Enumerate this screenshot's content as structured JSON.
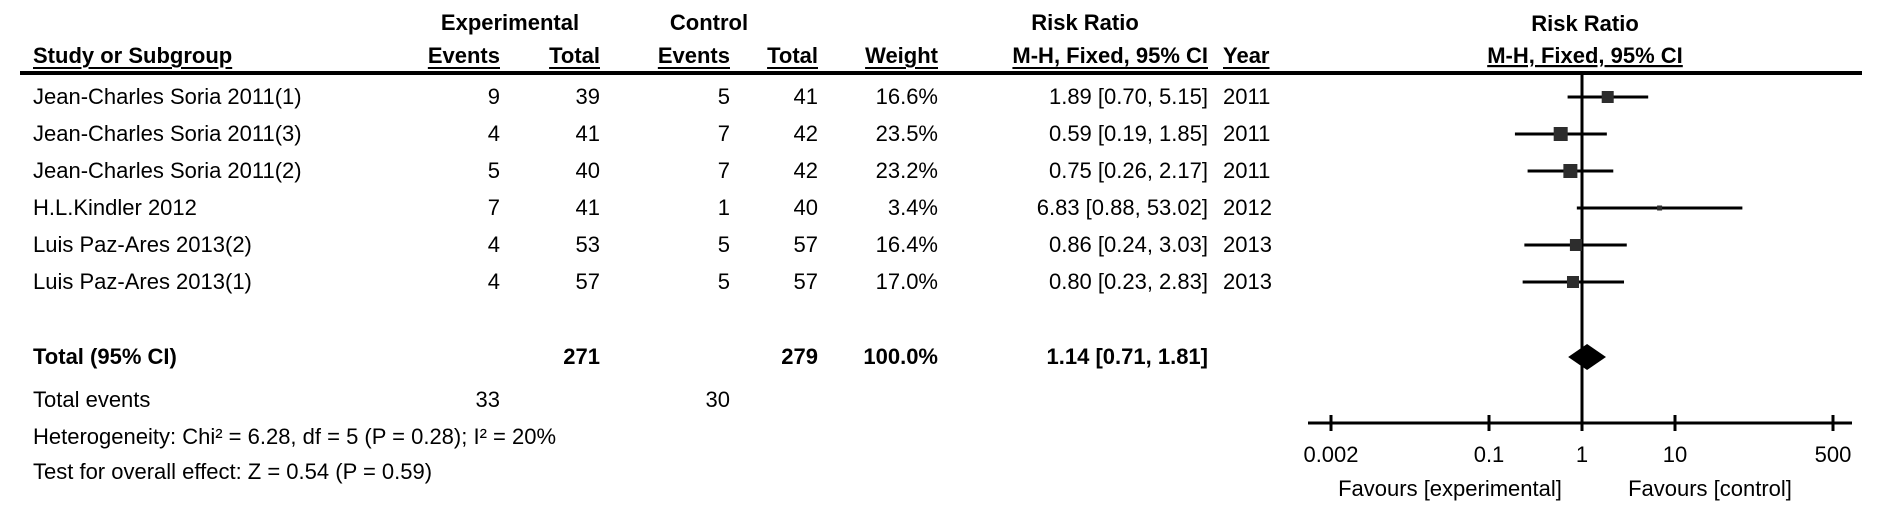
{
  "table": {
    "group_headers": {
      "experimental": "Experimental",
      "control": "Control",
      "risk_ratio": "Risk Ratio"
    },
    "col_headers": {
      "study": "Study or Subgroup",
      "exp_events": "Events",
      "exp_total": "Total",
      "ctrl_events": "Events",
      "ctrl_total": "Total",
      "weight": "Weight",
      "mh_ci": "M-H, Fixed, 95% CI",
      "year": "Year"
    },
    "rows": [
      {
        "study": "Jean-Charles Soria 2011(1)",
        "exp_events": "9",
        "exp_total": "39",
        "ctrl_events": "5",
        "ctrl_total": "41",
        "weight": "16.6%",
        "ci": "1.89 [0.70, 5.15]",
        "year": "2011"
      },
      {
        "study": "Jean-Charles Soria 2011(3)",
        "exp_events": "4",
        "exp_total": "41",
        "ctrl_events": "7",
        "ctrl_total": "42",
        "weight": "23.5%",
        "ci": "0.59 [0.19, 1.85]",
        "year": "2011"
      },
      {
        "study": "Jean-Charles Soria 2011(2)",
        "exp_events": "5",
        "exp_total": "40",
        "ctrl_events": "7",
        "ctrl_total": "42",
        "weight": "23.2%",
        "ci": "0.75 [0.26, 2.17]",
        "year": "2011"
      },
      {
        "study": "H.L.Kindler 2012",
        "exp_events": "7",
        "exp_total": "41",
        "ctrl_events": "1",
        "ctrl_total": "40",
        "weight": "3.4%",
        "ci": "6.83 [0.88, 53.02]",
        "year": "2012"
      },
      {
        "study": "Luis Paz-Ares 2013(2)",
        "exp_events": "4",
        "exp_total": "53",
        "ctrl_events": "5",
        "ctrl_total": "57",
        "weight": "16.4%",
        "ci": "0.86 [0.24, 3.03]",
        "year": "2013"
      },
      {
        "study": "Luis Paz-Ares 2013(1)",
        "exp_events": "4",
        "exp_total": "57",
        "ctrl_events": "5",
        "ctrl_total": "57",
        "weight": "17.0%",
        "ci": "0.80 [0.23, 2.83]",
        "year": "2013"
      }
    ],
    "total_row": {
      "label": "Total (95% CI)",
      "exp_total": "271",
      "ctrl_total": "279",
      "weight": "100.0%",
      "ci": "1.14 [0.71, 1.81]"
    },
    "total_events_row": {
      "label": "Total events",
      "exp_events": "33",
      "ctrl_events": "30"
    },
    "heterogeneity": "Heterogeneity: Chi² = 6.28, df = 5 (P = 0.28); I² = 20%",
    "overall_effect": "Test for overall effect: Z = 0.54 (P = 0.59)"
  },
  "plot": {
    "header_line1": "Risk Ratio",
    "header_line2": "M-H, Fixed, 95% CI",
    "favours_left": "Favours [experimental]",
    "favours_right": "Favours [control]"
  },
  "chart_data": {
    "type": "forest",
    "effect_measure": "Risk Ratio, M-H, Fixed, 95% CI",
    "x_axis": {
      "scale": "log",
      "ticks": [
        {
          "v": 0.002,
          "label": "0.002"
        },
        {
          "v": 0.1,
          "label": "0.1"
        },
        {
          "v": 1,
          "label": "1"
        },
        {
          "v": 10,
          "label": "10"
        },
        {
          "v": 500,
          "label": "500"
        }
      ]
    },
    "studies": [
      {
        "name": "Jean-Charles Soria 2011(1)",
        "rr": 1.89,
        "ci_low": 0.7,
        "ci_high": 5.15,
        "weight_pct": 16.6,
        "year": 2011
      },
      {
        "name": "Jean-Charles Soria 2011(3)",
        "rr": 0.59,
        "ci_low": 0.19,
        "ci_high": 1.85,
        "weight_pct": 23.5,
        "year": 2011
      },
      {
        "name": "Jean-Charles Soria 2011(2)",
        "rr": 0.75,
        "ci_low": 0.26,
        "ci_high": 2.17,
        "weight_pct": 23.2,
        "year": 2011
      },
      {
        "name": "H.L.Kindler 2012",
        "rr": 6.83,
        "ci_low": 0.88,
        "ci_high": 53.02,
        "weight_pct": 3.4,
        "year": 2012
      },
      {
        "name": "Luis Paz-Ares 2013(2)",
        "rr": 0.86,
        "ci_low": 0.24,
        "ci_high": 3.03,
        "weight_pct": 16.4,
        "year": 2013
      },
      {
        "name": "Luis Paz-Ares 2013(1)",
        "rr": 0.8,
        "ci_low": 0.23,
        "ci_high": 2.83,
        "weight_pct": 17.0,
        "year": 2013
      }
    ],
    "total": {
      "label": "Total (95% CI)",
      "rr": 1.14,
      "ci_low": 0.71,
      "ci_high": 1.81,
      "weight_pct": 100.0
    },
    "totals": {
      "experimental_n": 271,
      "control_n": 279,
      "experimental_events": 33,
      "control_events": 30
    },
    "colors": {
      "line": "#000000",
      "marker": "#2d2d2d",
      "diamond": "#000000"
    }
  }
}
